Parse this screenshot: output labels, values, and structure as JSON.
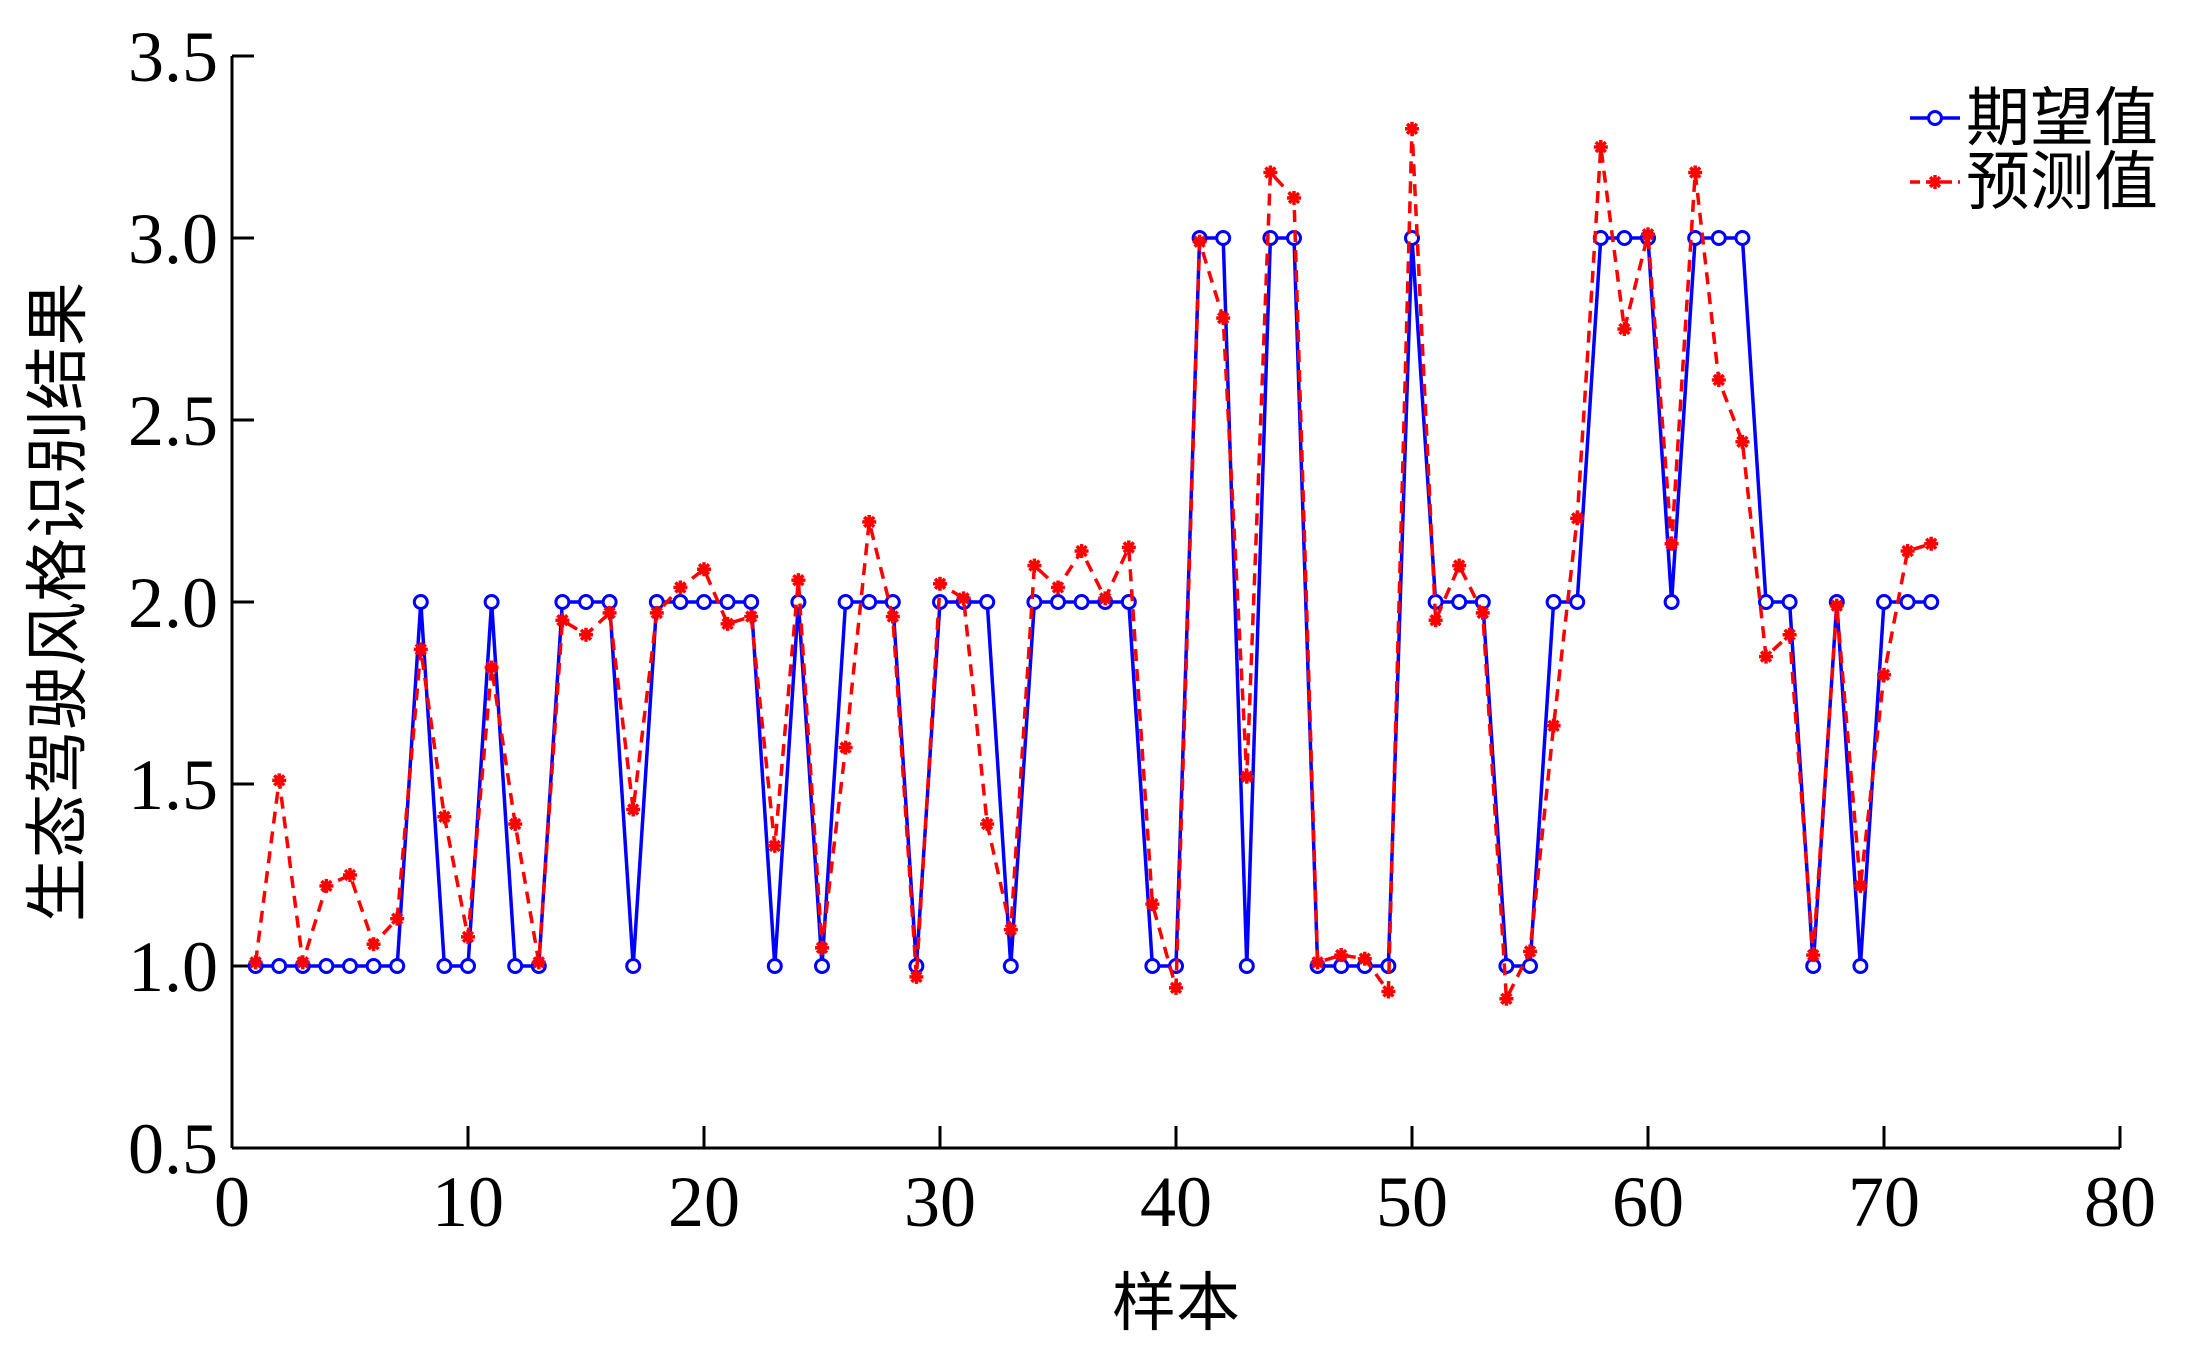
{
  "chart_data": {
    "type": "line",
    "title": "",
    "xlabel": "样本",
    "ylabel": "生态驾驶风格识别结果",
    "xlim": [
      0,
      80
    ],
    "ylim": [
      0.5,
      3.5
    ],
    "xticks": [
      0,
      10,
      20,
      30,
      40,
      50,
      60,
      70,
      80
    ],
    "yticks": [
      0.5,
      1.0,
      1.5,
      2.0,
      2.5,
      3.0,
      3.5
    ],
    "xtick_labels": [
      "0",
      "10",
      "20",
      "30",
      "40",
      "50",
      "60",
      "70",
      "80"
    ],
    "ytick_labels": [
      "0.5",
      "1.0",
      "1.5",
      "2.0",
      "2.5",
      "3.0",
      "3.5"
    ],
    "grid": false,
    "legend_position": "top-right",
    "x": [
      1,
      2,
      3,
      4,
      5,
      6,
      7,
      8,
      9,
      10,
      11,
      12,
      13,
      14,
      15,
      16,
      17,
      18,
      19,
      20,
      21,
      22,
      23,
      24,
      25,
      26,
      27,
      28,
      29,
      30,
      31,
      32,
      33,
      34,
      35,
      36,
      37,
      38,
      39,
      40,
      41,
      42,
      43,
      44,
      45,
      46,
      47,
      48,
      49,
      50,
      51,
      52,
      53,
      54,
      55,
      56,
      57,
      58,
      59,
      60,
      61,
      62,
      63,
      64,
      65,
      66,
      67,
      68,
      69,
      70,
      71,
      72
    ],
    "series": [
      {
        "name": "期望值",
        "color": "#0000ff",
        "line_style": "solid",
        "marker": "circle",
        "values": [
          1,
          1,
          1,
          1,
          1,
          1,
          1,
          2,
          1,
          1,
          2,
          1,
          1,
          2,
          2,
          2,
          1,
          2,
          2,
          2,
          2,
          2,
          1,
          2,
          1,
          2,
          2,
          2,
          1,
          2,
          2,
          2,
          1,
          2,
          2,
          2,
          2,
          2,
          1,
          1,
          3,
          3,
          1,
          3,
          3,
          1,
          1,
          1,
          1,
          3,
          2,
          2,
          2,
          1,
          1,
          2,
          2,
          3,
          3,
          3,
          2,
          3,
          3,
          3,
          2,
          2,
          1,
          2,
          1,
          2,
          2,
          2
        ]
      },
      {
        "name": "预测值",
        "color": "#ff0000",
        "line_style": "dashed",
        "marker": "star",
        "values": [
          1.01,
          1.51,
          1.01,
          1.22,
          1.25,
          1.06,
          1.13,
          1.87,
          1.41,
          1.08,
          1.82,
          1.39,
          1.01,
          1.95,
          1.91,
          1.97,
          1.43,
          1.97,
          2.04,
          2.09,
          1.94,
          1.96,
          1.33,
          2.06,
          1.05,
          1.6,
          2.22,
          1.96,
          0.97,
          2.05,
          2.01,
          1.39,
          1.1,
          2.1,
          2.04,
          2.14,
          2.01,
          2.15,
          1.17,
          0.94,
          2.99,
          2.78,
          1.52,
          3.18,
          3.11,
          1.01,
          1.03,
          1.02,
          0.93,
          3.3,
          1.95,
          2.1,
          1.97,
          0.91,
          1.04,
          1.66,
          2.23,
          3.25,
          2.75,
          3.01,
          2.16,
          3.18,
          2.61,
          2.44,
          1.85,
          1.91,
          1.03,
          1.99,
          1.22,
          1.8,
          2.14,
          2.16
        ]
      }
    ]
  }
}
